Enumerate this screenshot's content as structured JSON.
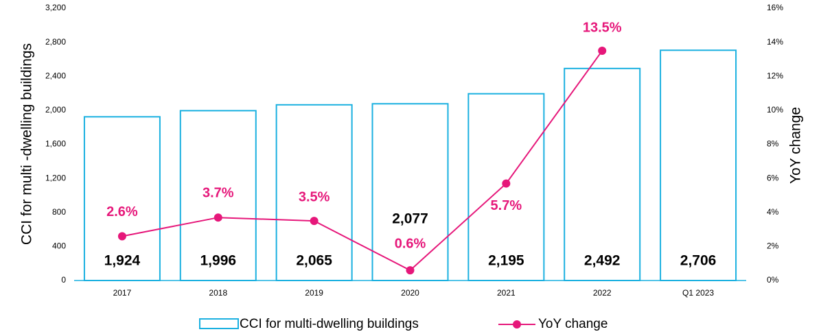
{
  "chart_data": {
    "type": "bar+line",
    "categories": [
      "2017",
      "2018",
      "2019",
      "2020",
      "2021",
      "2022",
      "Q1 2023"
    ],
    "ylabel": "CCI for multi -dwelling buildings",
    "y2label": "YoY change",
    "ylim": [
      0,
      3200
    ],
    "yticks": [
      0,
      400,
      800,
      {
        "value": 1200,
        "label": "1,200"
      },
      {
        "value": 1600,
        "label": "1,600"
      },
      {
        "value": 2000,
        "label": "2,000"
      },
      {
        "value": 2400,
        "label": "2,400"
      },
      {
        "value": 2800,
        "label": "2,800"
      },
      {
        "value": 3200,
        "label": "3,200"
      }
    ],
    "y2lim": [
      0,
      16
    ],
    "y2ticks": [
      {
        "value": 0,
        "label": "0%"
      },
      {
        "value": 2,
        "label": "2%"
      },
      {
        "value": 4,
        "label": "4%"
      },
      {
        "value": 6,
        "label": "6%"
      },
      {
        "value": 8,
        "label": "8%"
      },
      {
        "value": 10,
        "label": "10%"
      },
      {
        "value": 12,
        "label": "12%"
      },
      {
        "value": 14,
        "label": "14%"
      },
      {
        "value": 16,
        "label": "16%"
      }
    ],
    "series": [
      {
        "name": "CCI for multi-dwelling buildings",
        "type": "bar",
        "color": "#1ab0e0",
        "values": [
          1924,
          1996,
          2065,
          2077,
          2195,
          2492,
          2706
        ],
        "value_labels": [
          "1,924",
          "1,996",
          "2,065",
          "2,077",
          "2,195",
          "2,492",
          "2,706"
        ]
      },
      {
        "name": "YoY change",
        "type": "line",
        "axis": "y2",
        "color": "#e6177a",
        "values": [
          2.6,
          3.7,
          3.5,
          0.6,
          5.7,
          13.5,
          null
        ],
        "value_labels": [
          "2.6%",
          "3.7%",
          "3.5%",
          "0.6%",
          "5.7%",
          "13.5%",
          null
        ]
      }
    ],
    "legend": "bottom"
  }
}
